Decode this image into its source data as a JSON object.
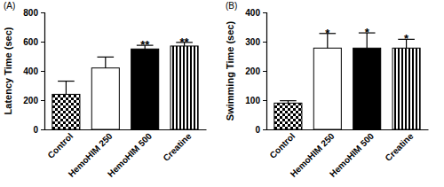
{
  "chart_data": [
    {
      "type": "bar",
      "title": "(A)",
      "y_label": "Latency Time (sec)",
      "categories": [
        "Control",
        "HemoHIM 250",
        "HemoHIM 500",
        "Creatine"
      ],
      "values": [
        240,
        420,
        550,
        570
      ],
      "errors": [
        90,
        75,
        25,
        25
      ],
      "significance": [
        null,
        null,
        "**",
        "**"
      ],
      "colors": [
        "#000000",
        "#ffffff",
        "#000000",
        "#000000"
      ],
      "ylim": [
        0,
        800
      ],
      "yticks": [
        0,
        200,
        400,
        600,
        800
      ],
      "grid": false
    },
    {
      "type": "bar",
      "title": "(B)",
      "y_label": "Swimming Time (sec)",
      "categories": [
        "Control",
        "HemoHIM 250",
        "HemoHIM 500",
        "Creatine"
      ],
      "values": [
        90,
        278,
        278,
        278
      ],
      "errors": [
        8,
        50,
        52,
        30
      ],
      "significance": [
        null,
        "*",
        "*",
        "*"
      ],
      "colors": [
        "#000000",
        "#ffffff",
        "#000000",
        "#000000"
      ],
      "ylim": [
        0,
        400
      ],
      "yticks": [
        0,
        100,
        200,
        300,
        400
      ],
      "grid": false
    }
  ]
}
